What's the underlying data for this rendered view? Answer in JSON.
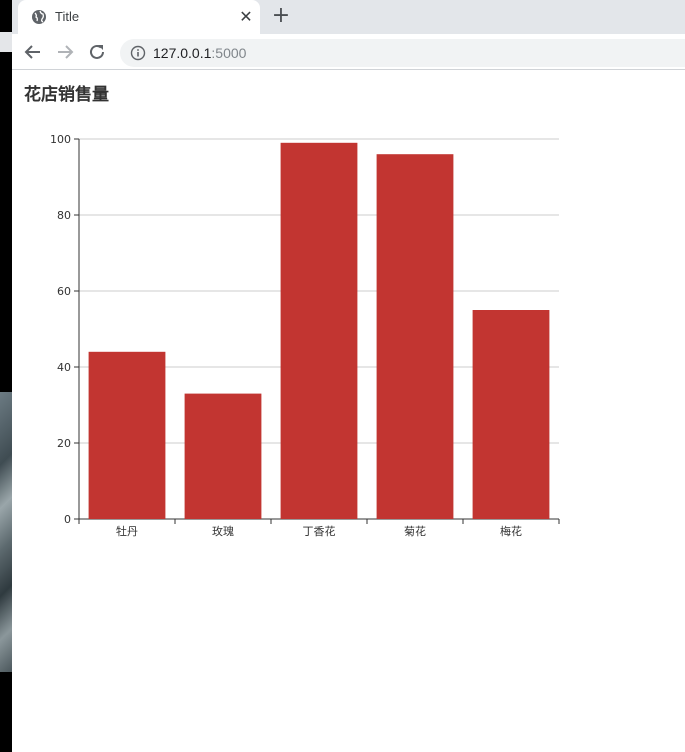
{
  "browser": {
    "tab_title": "Title",
    "url_host": "127.0.0.1",
    "url_port": ":5000",
    "icons": {
      "tab": "globe-icon",
      "close": "close-icon",
      "new_tab": "plus-icon",
      "back": "back-arrow-icon",
      "forward": "forward-arrow-icon",
      "reload": "reload-icon",
      "site_info": "info-icon"
    }
  },
  "page": {
    "title": "花店销售量"
  },
  "chart_data": {
    "type": "bar",
    "title": "花店销售量",
    "categories": [
      "牡丹",
      "玫瑰",
      "丁香花",
      "菊花",
      "梅花"
    ],
    "values": [
      44,
      33,
      99,
      96,
      55
    ],
    "ylim": [
      0,
      100
    ],
    "yticks": [
      0,
      20,
      40,
      60,
      80,
      100
    ],
    "grid": true,
    "legend": "none",
    "bar_color": "#c23531"
  }
}
